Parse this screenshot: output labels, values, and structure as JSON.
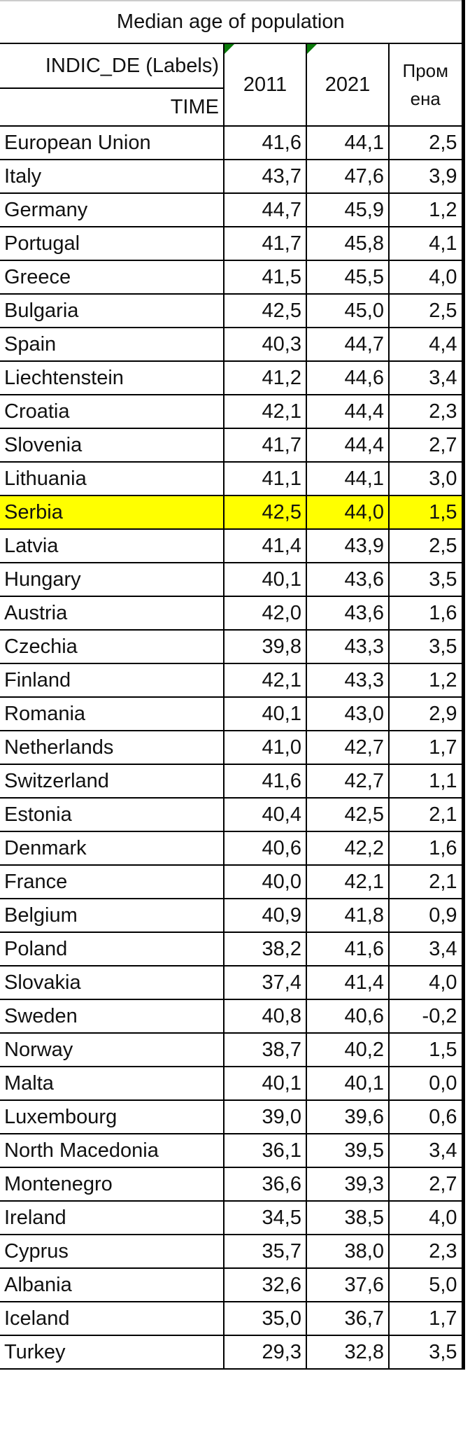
{
  "title": "Median age of population",
  "header": {
    "indic": "INDIC_DE (Labels)",
    "time": "TIME",
    "y1": "2011",
    "y2": "2021",
    "change_top": "Пром",
    "change_bottom": "ена"
  },
  "highlight_color": "#ffff00",
  "highlighted_row": "Serbia",
  "rows": [
    [
      "European Union",
      "41,6",
      "44,1",
      "2,5"
    ],
    [
      "Italy",
      "43,7",
      "47,6",
      "3,9"
    ],
    [
      "Germany",
      "44,7",
      "45,9",
      "1,2"
    ],
    [
      "Portugal",
      "41,7",
      "45,8",
      "4,1"
    ],
    [
      "Greece",
      "41,5",
      "45,5",
      "4,0"
    ],
    [
      "Bulgaria",
      "42,5",
      "45,0",
      "2,5"
    ],
    [
      "Spain",
      "40,3",
      "44,7",
      "4,4"
    ],
    [
      "Liechtenstein",
      "41,2",
      "44,6",
      "3,4"
    ],
    [
      "Croatia",
      "42,1",
      "44,4",
      "2,3"
    ],
    [
      "Slovenia",
      "41,7",
      "44,4",
      "2,7"
    ],
    [
      "Lithuania",
      "41,1",
      "44,1",
      "3,0"
    ],
    [
      "Serbia",
      "42,5",
      "44,0",
      "1,5"
    ],
    [
      "Latvia",
      "41,4",
      "43,9",
      "2,5"
    ],
    [
      "Hungary",
      "40,1",
      "43,6",
      "3,5"
    ],
    [
      "Austria",
      "42,0",
      "43,6",
      "1,6"
    ],
    [
      "Czechia",
      "39,8",
      "43,3",
      "3,5"
    ],
    [
      "Finland",
      "42,1",
      "43,3",
      "1,2"
    ],
    [
      "Romania",
      "40,1",
      "43,0",
      "2,9"
    ],
    [
      "Netherlands",
      "41,0",
      "42,7",
      "1,7"
    ],
    [
      "Switzerland",
      "41,6",
      "42,7",
      "1,1"
    ],
    [
      "Estonia",
      "40,4",
      "42,5",
      "2,1"
    ],
    [
      "Denmark",
      "40,6",
      "42,2",
      "1,6"
    ],
    [
      "France",
      "40,0",
      "42,1",
      "2,1"
    ],
    [
      "Belgium",
      "40,9",
      "41,8",
      "0,9"
    ],
    [
      "Poland",
      "38,2",
      "41,6",
      "3,4"
    ],
    [
      "Slovakia",
      "37,4",
      "41,4",
      "4,0"
    ],
    [
      "Sweden",
      "40,8",
      "40,6",
      "-0,2"
    ],
    [
      "Norway",
      "38,7",
      "40,2",
      "1,5"
    ],
    [
      "Malta",
      "40,1",
      "40,1",
      "0,0"
    ],
    [
      "Luxembourg",
      "39,0",
      "39,6",
      "0,6"
    ],
    [
      "North Macedonia",
      "36,1",
      "39,5",
      "3,4"
    ],
    [
      "Montenegro",
      "36,6",
      "39,3",
      "2,7"
    ],
    [
      "Ireland",
      "34,5",
      "38,5",
      "4,0"
    ],
    [
      "Cyprus",
      "35,7",
      "38,0",
      "2,3"
    ],
    [
      "Albania",
      "32,6",
      "37,6",
      "5,0"
    ],
    [
      "Iceland",
      "35,0",
      "36,7",
      "1,7"
    ],
    [
      "Turkey",
      "29,3",
      "32,8",
      "3,5"
    ]
  ]
}
